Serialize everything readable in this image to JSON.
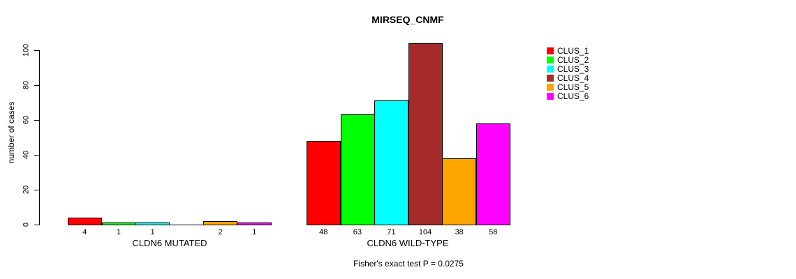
{
  "title": "MIRSEQ_CNMF",
  "y_axis": {
    "label": "number of cases"
  },
  "footer": "Fisher's exact test P = 0.0275",
  "legend": {
    "items": [
      {
        "label": "CLUS_1",
        "color": "#FF0000"
      },
      {
        "label": "CLUS_2",
        "color": "#00FF00"
      },
      {
        "label": "CLUS_3",
        "color": "#00FFFF"
      },
      {
        "label": "CLUS_4",
        "color": "#A52A2A"
      },
      {
        "label": "CLUS_5",
        "color": "#FFA500"
      },
      {
        "label": "CLUS_6",
        "color": "#FF00FF"
      }
    ]
  },
  "chart_data": {
    "type": "bar",
    "title": "MIRSEQ_CNMF",
    "xlabel": "",
    "ylabel": "number of cases",
    "ylim": [
      0,
      100
    ],
    "yticks": [
      0,
      20,
      40,
      60,
      80,
      100
    ],
    "grid": false,
    "legend_position": "right",
    "series": [
      "CLUS_1",
      "CLUS_2",
      "CLUS_3",
      "CLUS_4",
      "CLUS_5",
      "CLUS_6"
    ],
    "colors": [
      "#FF0000",
      "#00FF00",
      "#00FFFF",
      "#A52A2A",
      "#FFA500",
      "#FF00FF"
    ],
    "groups": [
      {
        "label": "CLDN6 MUTATED",
        "values": [
          4,
          1,
          1,
          0,
          2,
          1
        ],
        "bar_labels": [
          "4",
          "1",
          "1",
          "",
          "2",
          "1"
        ]
      },
      {
        "label": "CLDN6 WILD-TYPE",
        "values": [
          48,
          63,
          71,
          104,
          38,
          58
        ],
        "bar_labels": [
          "48",
          "63",
          "71",
          "104",
          "38",
          "58"
        ]
      }
    ],
    "annotation": "Fisher's exact test P = 0.0275"
  }
}
